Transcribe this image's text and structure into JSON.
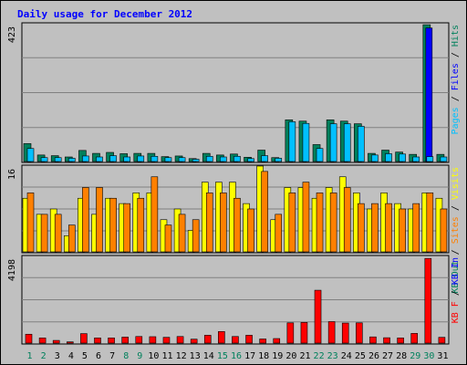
{
  "title": "Daily usage for December 2012",
  "colors": {
    "background": "#c0c0c0",
    "title": "#0000ff",
    "hits": "#00805c",
    "files": "#0000ff",
    "pages": "#00c0ff",
    "visits": "#ffff00",
    "sites": "#ff8000",
    "kb_in": "#0000ff",
    "kb_out": "#00805c",
    "kb_f": "#ff0000",
    "weekend_day": "#00805c",
    "weekday": "#000000"
  },
  "chart_data": {
    "type": "bar",
    "x_labels": [
      "1",
      "2",
      "3",
      "4",
      "5",
      "6",
      "7",
      "8",
      "9",
      "10",
      "11",
      "12",
      "13",
      "14",
      "15",
      "16",
      "17",
      "18",
      "19",
      "20",
      "21",
      "22",
      "23",
      "24",
      "25",
      "26",
      "27",
      "28",
      "29",
      "30",
      "31"
    ],
    "weekend_days": [
      1,
      2,
      8,
      9,
      15,
      16,
      22,
      23,
      29,
      30
    ],
    "panels": [
      {
        "id": "hits",
        "ymax_label": "423",
        "ymax": 423,
        "legend": [
          {
            "text": "Hits",
            "color": "#00805c"
          },
          {
            "text": "Files",
            "color": "#0000ff"
          },
          {
            "text": "Pages",
            "color": "#00c0ff"
          }
        ],
        "series": [
          {
            "name": "Hits",
            "color": "#00805c",
            "values": [
              55,
              20,
              18,
              14,
              34,
              25,
              28,
              24,
              25,
              25,
              15,
              17,
              9,
              25,
              20,
              23,
              13,
              35,
              12,
              128,
              124,
              52,
              128,
              124,
              116,
              25,
              35,
              29,
              22,
              420,
              22
            ]
          },
          {
            "name": "Files",
            "color": "#0000ff",
            "values": [
              0,
              0,
              0,
              0,
              0,
              0,
              0,
              0,
              0,
              0,
              0,
              0,
              0,
              0,
              0,
              0,
              0,
              0,
              0,
              0,
              0,
              0,
              0,
              0,
              0,
              0,
              0,
              0,
              0,
              410,
              0
            ]
          },
          {
            "name": "Pages",
            "color": "#00c0ff",
            "values": [
              40,
              12,
              12,
              10,
              17,
              14,
              18,
              14,
              17,
              16,
              12,
              12,
              7,
              16,
              14,
              16,
              9,
              18,
              10,
              122,
              117,
              40,
              116,
              116,
              108,
              20,
              24,
              23,
              14,
              15,
              14
            ]
          }
        ]
      },
      {
        "id": "visits",
        "ymax_label": "16",
        "ymax": 16,
        "legend": [
          {
            "text": "Visits",
            "color": "#ffff00"
          },
          {
            "text": "Sites",
            "color": "#ff8000"
          },
          {
            "text": "KB Out",
            "color": "#00805c"
          }
        ],
        "series": [
          {
            "name": "Visits",
            "color": "#ffff00",
            "values": [
              10,
              7,
              8,
              3,
              10,
              7,
              10,
              9,
              11,
              11,
              6,
              8,
              4,
              13,
              13,
              13,
              9,
              16,
              6,
              12,
              12,
              10,
              12,
              14,
              11,
              8,
              11,
              9,
              8,
              11,
              10
            ]
          },
          {
            "name": "Sites",
            "color": "#ff8000",
            "values": [
              11,
              7,
              7,
              5,
              12,
              12,
              10,
              9,
              10,
              14,
              5,
              7,
              6,
              11,
              11,
              10,
              8,
              15,
              7,
              11,
              13,
              11,
              11,
              12,
              9,
              9,
              9,
              8,
              9,
              11,
              8
            ]
          }
        ]
      },
      {
        "id": "kb",
        "ymax_label": "4198",
        "ymax": 4198,
        "legend": [
          {
            "text": "KB In",
            "color": "#0000ff"
          },
          {
            "text": "KB F",
            "color": "#ff0000"
          }
        ],
        "series": [
          {
            "name": "KB F",
            "color": "#ff0000",
            "values": [
              430,
              250,
              130,
              60,
              460,
              250,
              250,
              290,
              320,
              310,
              280,
              320,
              190,
              380,
              560,
              320,
              380,
              200,
              220,
              980,
              1000,
              2560,
              1040,
              970,
              980,
              300,
              260,
              250,
              470,
              4100,
              280
            ]
          }
        ]
      }
    ]
  }
}
